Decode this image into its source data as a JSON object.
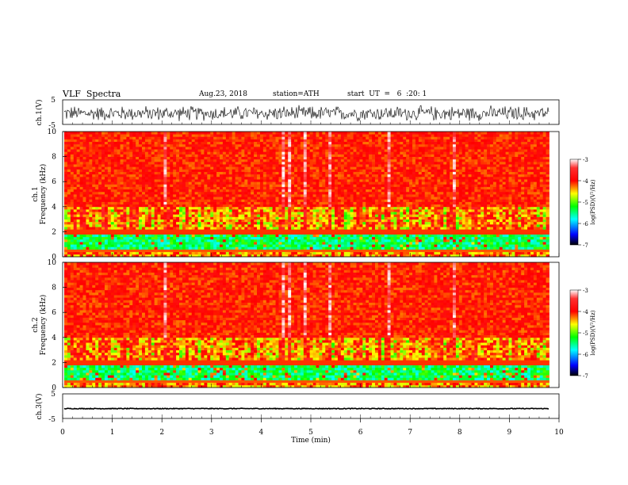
{
  "header": {
    "title": "VLF  Spectra",
    "date": "Aug.23, 2018",
    "station": "station=ATH",
    "start": "start  UT  =   6  :20: 1"
  },
  "chart_data": [
    {
      "type": "line",
      "panel": "ch1-waveform",
      "ylabel": "ch.1(V)",
      "yticks": [
        "5",
        "-5"
      ],
      "ylim": [
        -5,
        5
      ],
      "xlim": [
        0,
        10
      ],
      "data_extent_min": 9.8,
      "amplitude_range_v": [
        -4,
        3
      ]
    },
    {
      "type": "heatmap",
      "panel": "ch1-spectrogram",
      "ylabel_line1": "ch.1",
      "ylabel_line2": "Frequency  (kHz)",
      "yticks": [
        "0",
        "2",
        "4",
        "6",
        "8",
        "10"
      ],
      "ylim": [
        0,
        10
      ],
      "xlim": [
        0,
        10
      ],
      "data_extent_min": 9.8,
      "colorbar": {
        "label": "log(PSD)(V²/Hz)",
        "ticks": [
          "-3",
          "-4",
          "-5",
          "-6",
          "-7"
        ],
        "range": [
          -7,
          -3
        ]
      }
    },
    {
      "type": "heatmap",
      "panel": "ch2-spectrogram",
      "ylabel_line1": "ch.2",
      "ylabel_line2": "Frequency  (kHz)",
      "yticks": [
        "0",
        "2",
        "4",
        "6",
        "8",
        "10"
      ],
      "ylim": [
        0,
        10
      ],
      "xlim": [
        0,
        10
      ],
      "data_extent_min": 9.8,
      "colorbar": {
        "label": "log(PSD)(V²/Hz)",
        "ticks": [
          "-3",
          "-4",
          "-5",
          "-6",
          "-7"
        ],
        "range": [
          -7,
          -3
        ]
      }
    },
    {
      "type": "line",
      "panel": "ch3-waveform",
      "ylabel": "ch.3(V)",
      "yticks": [
        "5",
        "-5"
      ],
      "ylim": [
        -5,
        5
      ],
      "xlim": [
        0,
        10
      ],
      "data_extent_min": 9.8,
      "trace_level_v": -1
    }
  ],
  "xaxis": {
    "label": "Time  (min)",
    "ticks": [
      "0",
      "1",
      "2",
      "3",
      "4",
      "5",
      "6",
      "7",
      "8",
      "9",
      "10"
    ]
  }
}
